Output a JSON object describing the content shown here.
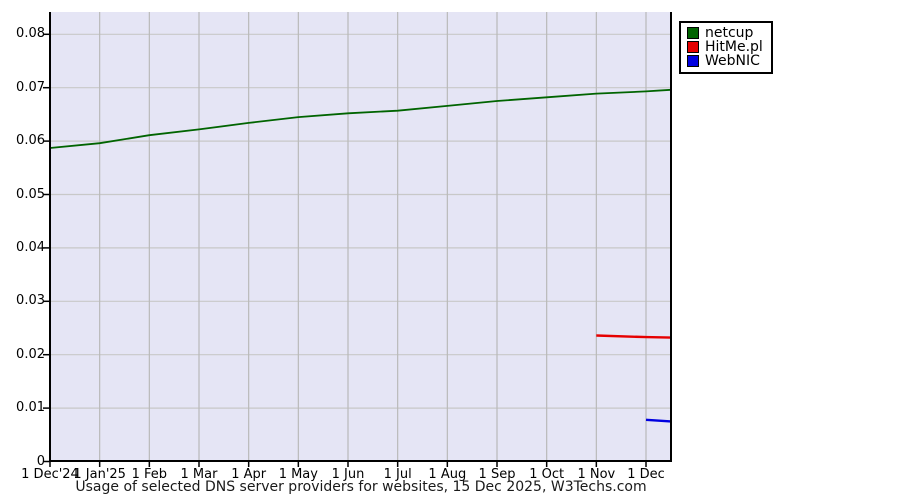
{
  "chart_data": {
    "type": "line",
    "title": "Usage of selected DNS server providers for websites, 15 Dec 2025, W3Techs.com",
    "x_tick_labels": [
      "1 Dec'24",
      "1 Jan'25",
      "1 Feb",
      "1 Mar",
      "1 Apr",
      "1 May",
      "1 Jun",
      "1 Jul",
      "1 Aug",
      "1 Sep",
      "1 Oct",
      "1 Nov",
      "1 Dec"
    ],
    "y_tick_labels": [
      "0",
      "0.01",
      "0.02",
      "0.03",
      "0.04",
      "0.05",
      "0.06",
      "0.07",
      "0.08"
    ],
    "yticks": [
      0,
      0.01,
      0.02,
      0.03,
      0.04,
      0.05,
      0.06,
      0.07,
      0.08
    ],
    "ylim": [
      0,
      0.084
    ],
    "x_unit": "months since 1 Dec 2024",
    "grid": true,
    "legend_position": "outside-top-right",
    "plot_bg_color": "#e5e5f5",
    "series": [
      {
        "name": "netcup",
        "color": "#006400",
        "x": [
          0,
          1,
          2,
          3,
          4,
          5,
          6,
          7,
          8,
          9,
          10,
          11,
          12,
          12.5
        ],
        "values": [
          0.0587,
          0.0596,
          0.0611,
          0.0622,
          0.0634,
          0.0645,
          0.0652,
          0.0657,
          0.0666,
          0.0675,
          0.0682,
          0.0689,
          0.0693,
          0.0696
        ]
      },
      {
        "name": "HitMe.pl",
        "color": "#e60000",
        "x": [
          11,
          12,
          12.5
        ],
        "values": [
          0.0236,
          0.0233,
          0.0232
        ]
      },
      {
        "name": "WebNIC",
        "color": "#0000e0",
        "x": [
          12,
          12.5
        ],
        "values": [
          0.0078,
          0.0075
        ]
      }
    ]
  }
}
